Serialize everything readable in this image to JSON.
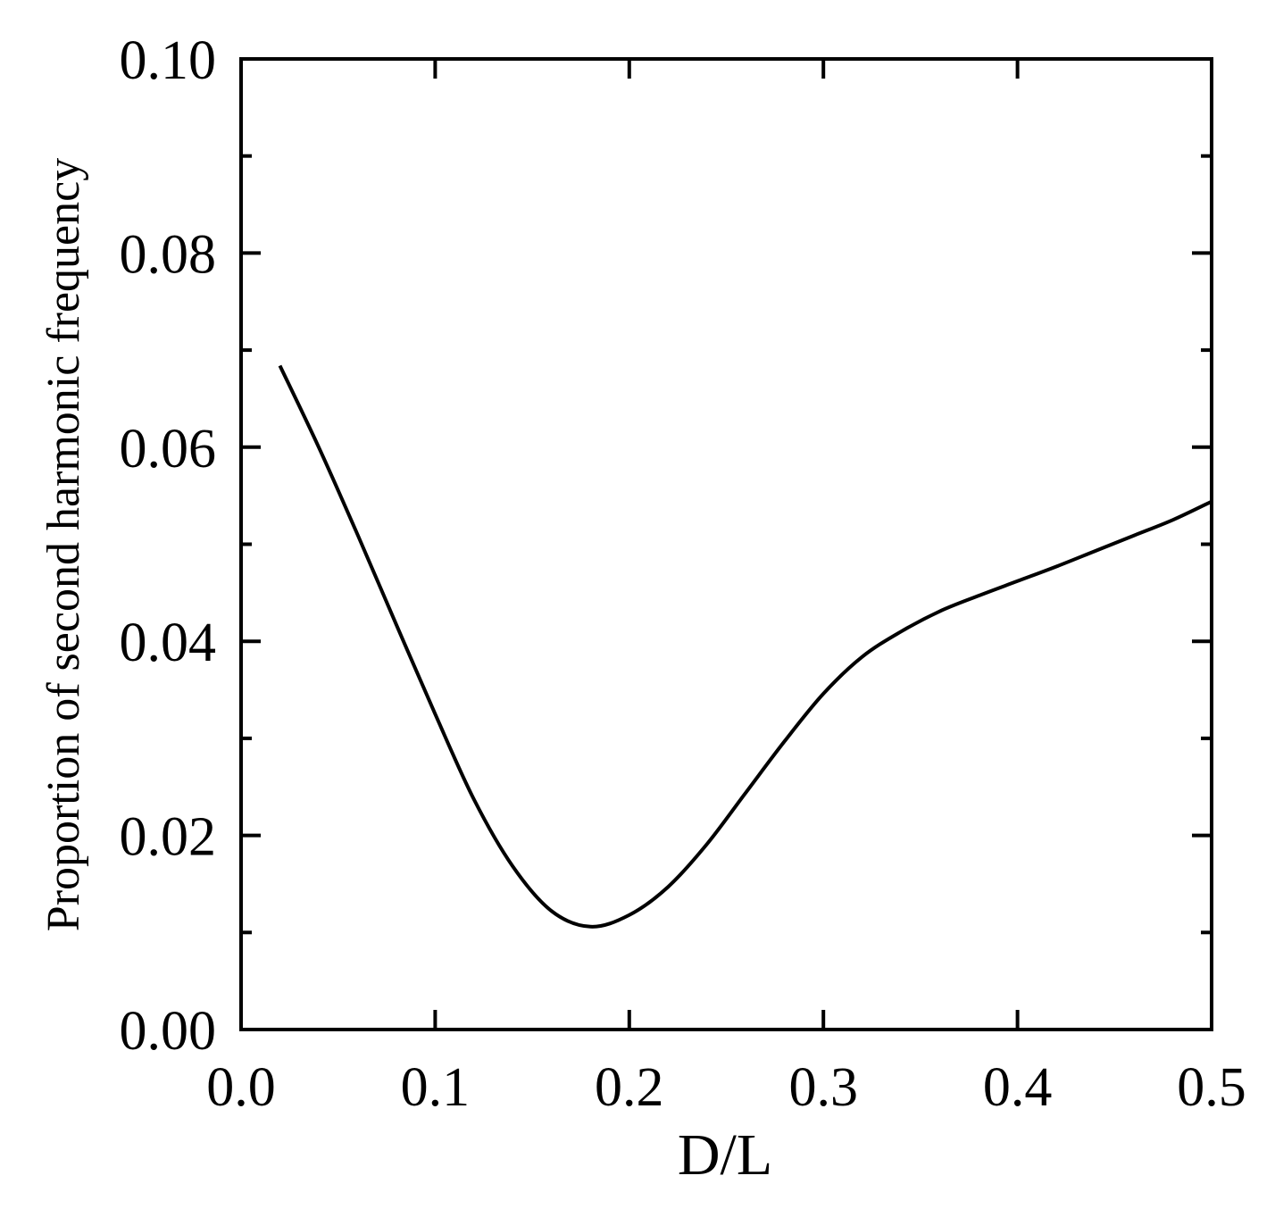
{
  "chart_data": {
    "type": "line",
    "x_label": "D/L",
    "y_label": "Proportion of second harmonic frequency",
    "x": [
      0.02,
      0.04,
      0.06,
      0.08,
      0.1,
      0.12,
      0.14,
      0.16,
      0.18,
      0.2,
      0.22,
      0.24,
      0.26,
      0.28,
      0.3,
      0.32,
      0.34,
      0.36,
      0.38,
      0.4,
      0.42,
      0.44,
      0.46,
      0.48,
      0.5
    ],
    "series": [
      {
        "color": "#000000",
        "values": [
          0.0684,
          0.06,
          0.051,
          0.0417,
          0.0325,
          0.0237,
          0.0168,
          0.0122,
          0.0106,
          0.0118,
          0.0147,
          0.0191,
          0.0244,
          0.0297,
          0.0346,
          0.0384,
          0.041,
          0.0431,
          0.0447,
          0.0462,
          0.0477,
          0.0493,
          0.0509,
          0.0525,
          0.0544
        ]
      }
    ],
    "xlim": [
      0,
      0.5
    ],
    "ylim": [
      0,
      0.1
    ],
    "xticks": [
      {
        "value": 0,
        "label": "0.0"
      },
      0.1,
      0.2,
      0.3,
      0.4,
      0.5
    ],
    "yticks": [
      {
        "value": 0,
        "label": "0.00"
      },
      0.02,
      0.04,
      0.06,
      0.08,
      {
        "value": 0.1,
        "label": "0.10"
      }
    ],
    "y_minor_ticks": [
      0.01,
      0.03,
      0.05,
      0.07,
      0.09
    ]
  }
}
